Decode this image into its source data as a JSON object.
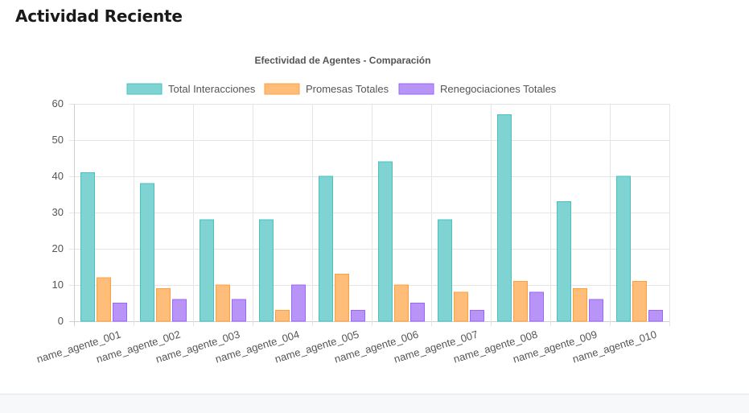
{
  "page": {
    "title": "Actividad Reciente"
  },
  "chart_data": {
    "type": "bar",
    "title": "Efectividad de Agentes - Comparación",
    "xlabel": "",
    "ylabel": "",
    "ylim": [
      0,
      60
    ],
    "yticks": [
      0,
      10,
      20,
      30,
      40,
      50,
      60
    ],
    "grid": true,
    "legend_position": "top",
    "categories": [
      "name_agente_001",
      "name_agente_002",
      "name_agente_003",
      "name_agente_004",
      "name_agente_005",
      "name_agente_006",
      "name_agente_007",
      "name_agente_008",
      "name_agente_009",
      "name_agente_010"
    ],
    "series": [
      {
        "name": "Total Interacciones",
        "fill": "#7fd3d3",
        "stroke": "#4bc0c0",
        "values": [
          41,
          38,
          28,
          28,
          40,
          44,
          28,
          57,
          33,
          40
        ]
      },
      {
        "name": "Promesas Totales",
        "fill": "#ffbd7a",
        "stroke": "#ff9f40",
        "values": [
          12,
          9,
          10,
          3,
          13,
          10,
          8,
          11,
          9,
          11
        ]
      },
      {
        "name": "Renegociaciones Totales",
        "fill": "#b794f6",
        "stroke": "#9966ff",
        "values": [
          5,
          6,
          6,
          10,
          3,
          5,
          3,
          8,
          6,
          3
        ]
      }
    ]
  }
}
